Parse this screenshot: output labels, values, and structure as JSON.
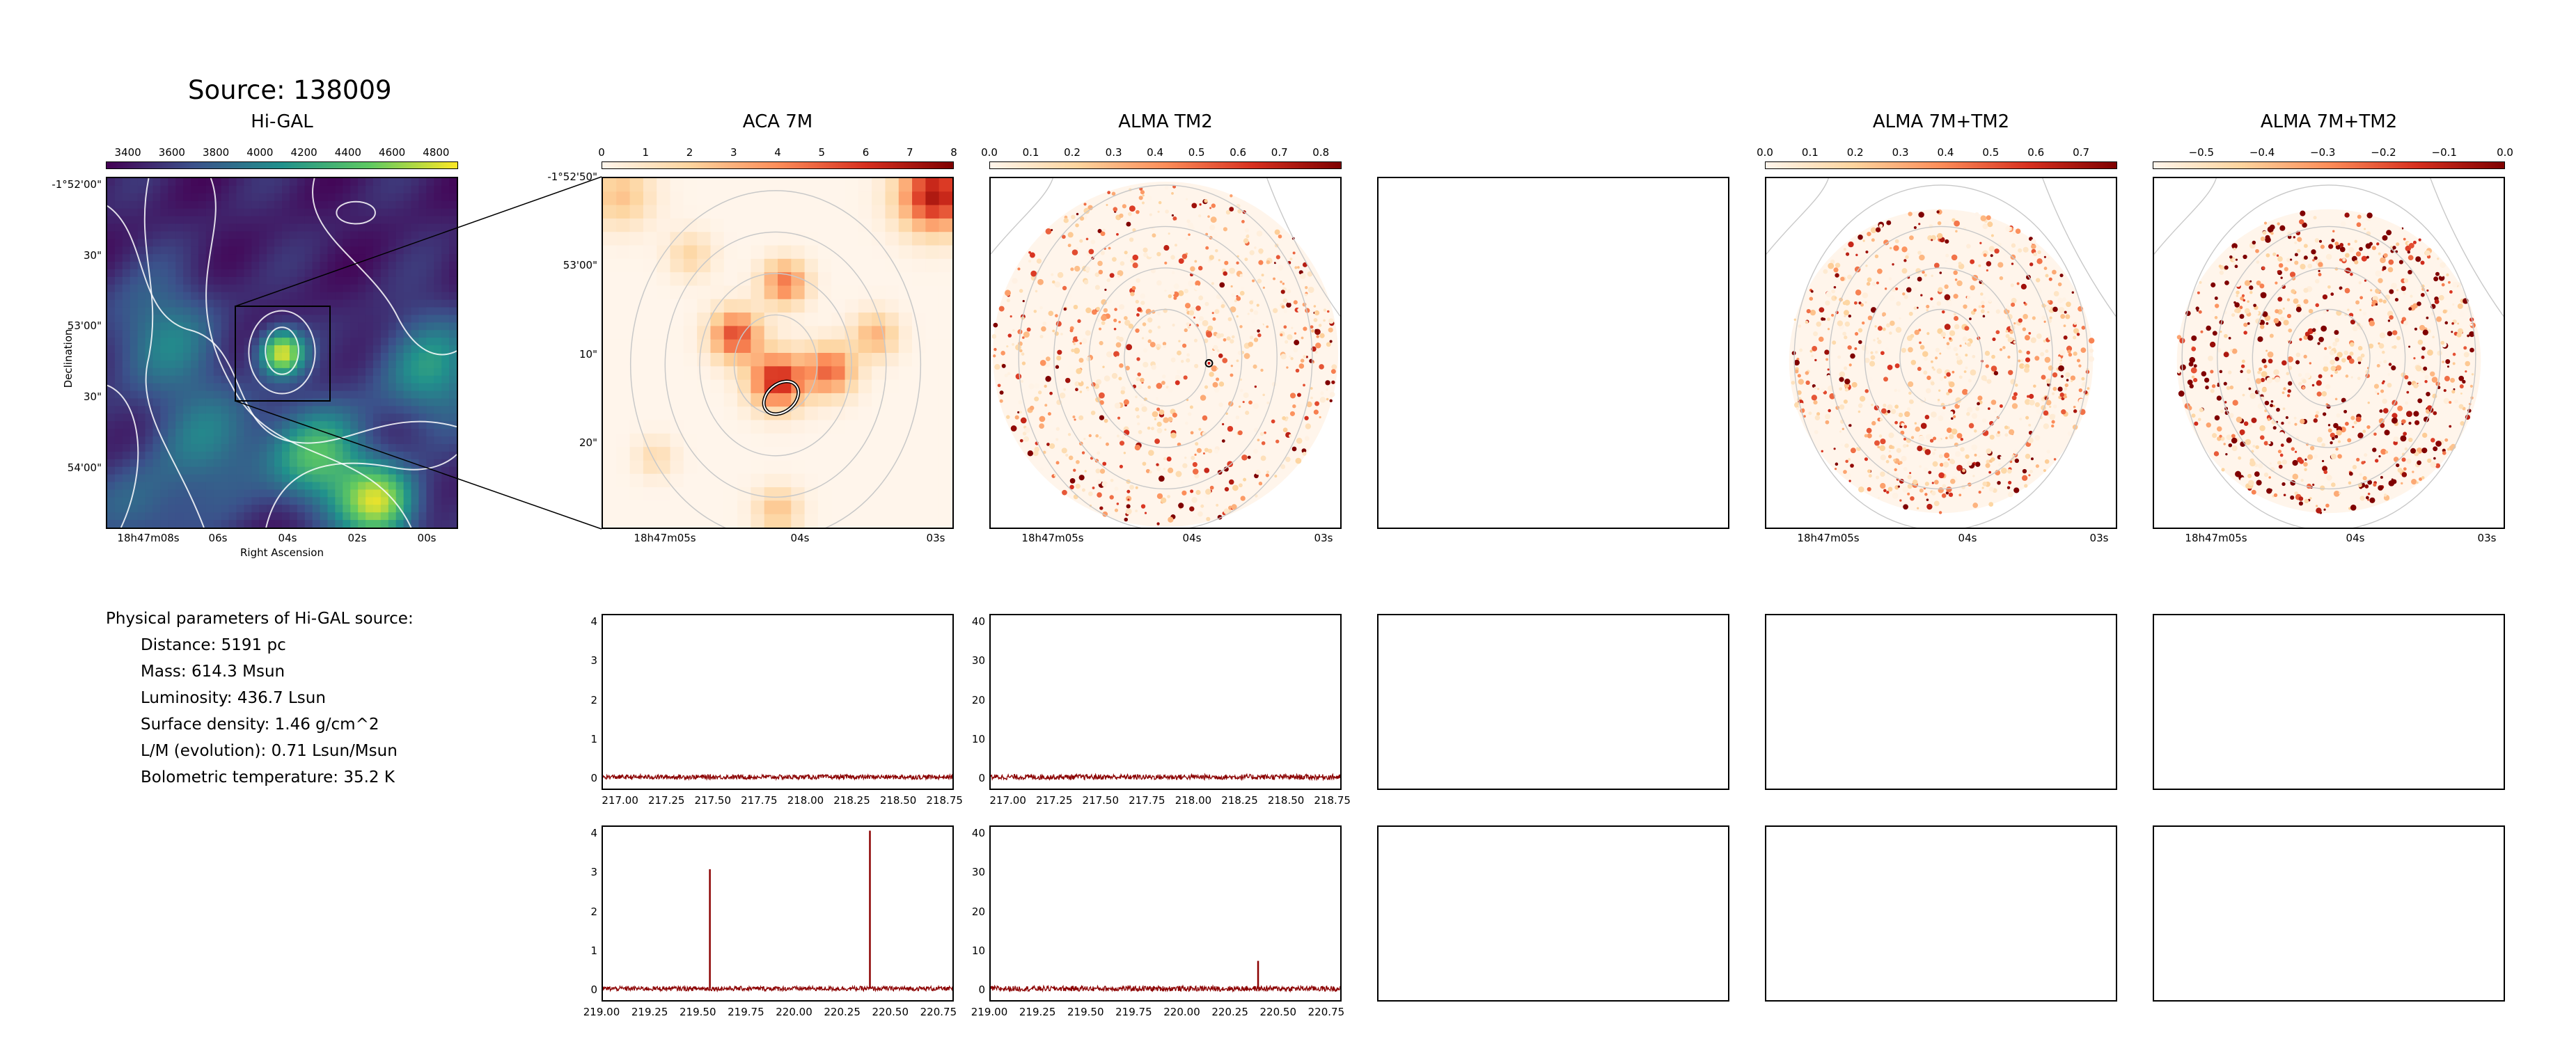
{
  "source_title": "Source: 138009",
  "params": {
    "heading": "Physical parameters of Hi-GAL source:",
    "lines": [
      "Distance: 5191 pc",
      "Mass: 614.3 Msun",
      "Luminosity: 436.7 Lsun",
      "Surface density: 1.46 g/cm^2",
      "L/M (evolution): 0.71 Lsun/Msun",
      "Bolometric temperature: 35.2 K"
    ]
  },
  "colors": {
    "viridis_low": "#440154",
    "viridis_high": "#fde725",
    "red_low": "#fff5eb",
    "red_high": "#7f0000",
    "spectrum": "#8b0000",
    "contour": "#c8c8c8"
  },
  "chart_data": [
    {
      "type": "heatmap",
      "title": "Hi-GAL",
      "colormap": "viridis",
      "colorbar_ticks": [
        "3400",
        "3600",
        "3800",
        "4000",
        "4200",
        "4400",
        "4600",
        "4800"
      ],
      "colorbar_range": [
        3300,
        4900
      ],
      "xlabel": "Right Ascension",
      "ylabel": "Declination",
      "x_ticks": [
        "18h47m08s",
        "06s",
        "04s",
        "02s",
        "00s"
      ],
      "y_ticks": [
        "-1°52'00\"",
        "30\"",
        "53'00\"",
        "30\"",
        "54'00\""
      ]
    },
    {
      "type": "heatmap",
      "title": "ACA 7M",
      "colormap": "OrRd",
      "colorbar_ticks": [
        "0",
        "1",
        "2",
        "3",
        "4",
        "5",
        "6",
        "7",
        "8"
      ],
      "colorbar_range": [
        0,
        8
      ],
      "x_ticks": [
        "18h47m05s",
        "04s",
        "03s"
      ],
      "y_ticks": [
        "-1°52'50\"",
        "53'00\"",
        "10\"",
        "20\""
      ]
    },
    {
      "type": "heatmap",
      "title": "ALMA TM2",
      "colormap": "OrRd",
      "colorbar_ticks": [
        "0.0",
        "0.1",
        "0.2",
        "0.3",
        "0.4",
        "0.5",
        "0.6",
        "0.7",
        "0.8"
      ],
      "colorbar_range": [
        0,
        0.85
      ],
      "x_ticks": [
        "18h47m05s",
        "04s",
        "03s"
      ]
    },
    {
      "type": "heatmap",
      "title": "ALMA 7M+TM2",
      "colormap": "OrRd",
      "colorbar_ticks": [
        "0.0",
        "0.1",
        "0.2",
        "0.3",
        "0.4",
        "0.5",
        "0.6",
        "0.7"
      ],
      "colorbar_range": [
        0,
        0.78
      ],
      "x_ticks": [
        "18h47m05s",
        "04s",
        "03s"
      ]
    },
    {
      "type": "heatmap",
      "title": "ALMA 7M+TM2",
      "colormap": "OrRd",
      "colorbar_ticks": [
        "−0.5",
        "−0.4",
        "−0.3",
        "−0.2",
        "−0.1",
        "0.0"
      ],
      "colorbar_range": [
        -0.58,
        0.0
      ],
      "x_ticks": [
        "18h47m05s",
        "04s",
        "03s"
      ]
    },
    {
      "type": "line",
      "name": "ACA 7M spectrum (217–218.8 GHz)",
      "xlim": [
        216.9,
        218.8
      ],
      "ylim": [
        -0.3,
        4.2
      ],
      "x_ticks": [
        "217.00",
        "217.25",
        "217.50",
        "217.75",
        "218.00",
        "218.25",
        "218.50",
        "218.75"
      ],
      "y_ticks": [
        "0",
        "1",
        "2",
        "3",
        "4"
      ],
      "peaks": [],
      "noise": 0.06
    },
    {
      "type": "line",
      "name": "ALMA TM2 spectrum (217–218.8 GHz)",
      "xlim": [
        216.9,
        218.8
      ],
      "ylim": [
        -3,
        42
      ],
      "x_ticks": [
        "217.00",
        "217.25",
        "217.50",
        "217.75",
        "218.00",
        "218.25",
        "218.50",
        "218.75"
      ],
      "y_ticks": [
        "0",
        "10",
        "20",
        "30",
        "40"
      ],
      "peaks": [],
      "noise": 0.7
    },
    {
      "type": "line",
      "name": "ACA 7M spectrum (219–220.8 GHz)",
      "xlim": [
        219.0,
        220.83
      ],
      "ylim": [
        -0.3,
        4.2
      ],
      "x_ticks": [
        "219.00",
        "219.25",
        "219.50",
        "219.75",
        "220.00",
        "220.25",
        "220.50",
        "220.75"
      ],
      "y_ticks": [
        "0",
        "1",
        "2",
        "3",
        "4"
      ],
      "peaks": [
        {
          "x": 219.56,
          "y": 3.1
        },
        {
          "x": 220.398,
          "y": 4.1
        }
      ],
      "noise": 0.06
    },
    {
      "type": "line",
      "name": "ALMA TM2 spectrum (219–220.8 GHz)",
      "xlim": [
        219.0,
        220.83
      ],
      "ylim": [
        -3,
        42
      ],
      "x_ticks": [
        "219.00",
        "219.25",
        "219.50",
        "219.75",
        "220.00",
        "220.25",
        "220.50",
        "220.75"
      ],
      "y_ticks": [
        "0",
        "10",
        "20",
        "30",
        "40"
      ],
      "peaks": [
        {
          "x": 220.4,
          "y": 7.2
        }
      ],
      "noise": 0.7
    }
  ]
}
